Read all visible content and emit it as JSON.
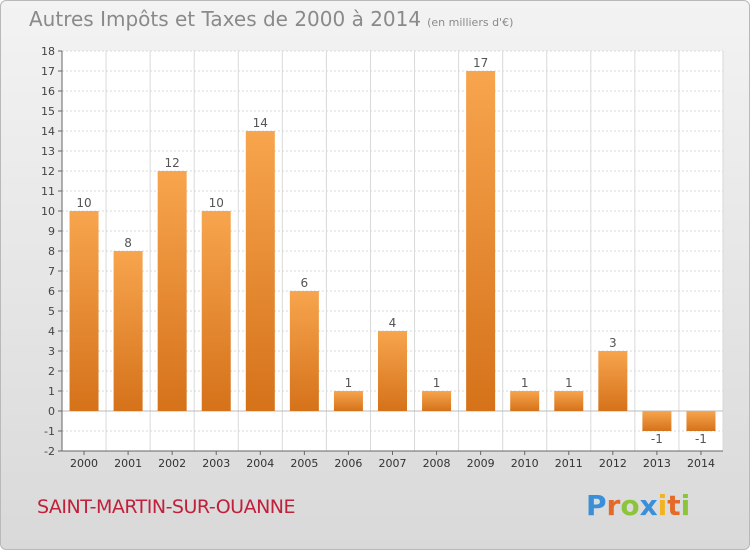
{
  "header": {
    "title": "Autres Impôts et Taxes de 2000 à 2014",
    "subtitle": "(en milliers d'€)"
  },
  "commune": "SAINT-MARTIN-SUR-OUANNE",
  "logo_text": "Proxiti",
  "colors": {
    "bar_light": "#f7a54e",
    "bar_dark": "#d5721a",
    "title": "#8a8a8a",
    "commune": "#c0203a",
    "grid": "#d9d9d9"
  },
  "chart_data": {
    "type": "bar",
    "title": "Autres Impôts et Taxes de 2000 à 2014",
    "subtitle": "(en milliers d'€)",
    "categories": [
      "2000",
      "2001",
      "2002",
      "2003",
      "2004",
      "2005",
      "2006",
      "2007",
      "2008",
      "2009",
      "2010",
      "2011",
      "2012",
      "2013",
      "2014"
    ],
    "values": [
      10,
      8,
      12,
      10,
      14,
      6,
      1,
      4,
      1,
      17,
      1,
      1,
      3,
      -1,
      -1
    ],
    "data_labels": [
      "10",
      "8",
      "12",
      "10",
      "14",
      "6",
      "1",
      "4",
      "1",
      "17",
      "1",
      "1",
      "3",
      "-1",
      "-1"
    ],
    "ylim": [
      -2,
      18
    ],
    "yticks": [
      -2,
      -1,
      0,
      1,
      2,
      3,
      4,
      5,
      6,
      7,
      8,
      9,
      10,
      11,
      12,
      13,
      14,
      15,
      16,
      17,
      18
    ],
    "grid": true,
    "legend": "none"
  }
}
